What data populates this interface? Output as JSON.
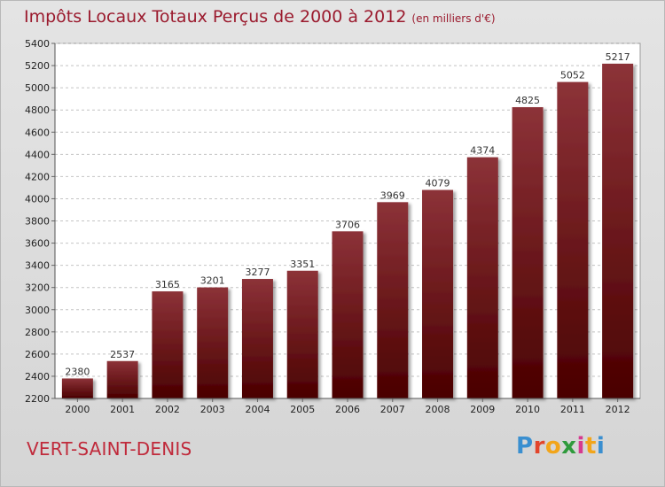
{
  "title": "Impôts Locaux Totaux Perçus de 2000 à 2012",
  "unit_note": "(en milliers d'€)",
  "commune": "VERT-SAINT-DENIS",
  "logo": {
    "letters": [
      "P",
      "r",
      "o",
      "x",
      "i",
      "t",
      "i"
    ],
    "colors": [
      "#3a8fd0",
      "#e2452b",
      "#f2a51a",
      "#2f9a3c",
      "#d63a8f",
      "#f2a51a",
      "#3a8fd0"
    ]
  },
  "colors": {
    "bar_top": "#8c3238",
    "bar_bottom": "#4a0000",
    "title": "#9b1b2e"
  },
  "chart_data": {
    "type": "bar",
    "title": "Impôts Locaux Totaux Perçus de 2000 à 2012",
    "subtitle": "(en milliers d'€)",
    "xlabel": "",
    "ylabel": "",
    "categories": [
      "2000",
      "2001",
      "2002",
      "2003",
      "2004",
      "2005",
      "2006",
      "2007",
      "2008",
      "2009",
      "2010",
      "2011",
      "2012"
    ],
    "values": [
      2380,
      2537,
      3165,
      3201,
      3277,
      3351,
      3706,
      3969,
      4079,
      4374,
      4825,
      5052,
      5217
    ],
    "ylim": [
      2200,
      5400
    ],
    "yticks": [
      2200,
      2400,
      2600,
      2800,
      3000,
      3200,
      3400,
      3600,
      3800,
      4000,
      4200,
      4400,
      4600,
      4800,
      5000,
      5200,
      5400
    ],
    "grid": true,
    "data_labels": true,
    "legend": "none"
  }
}
